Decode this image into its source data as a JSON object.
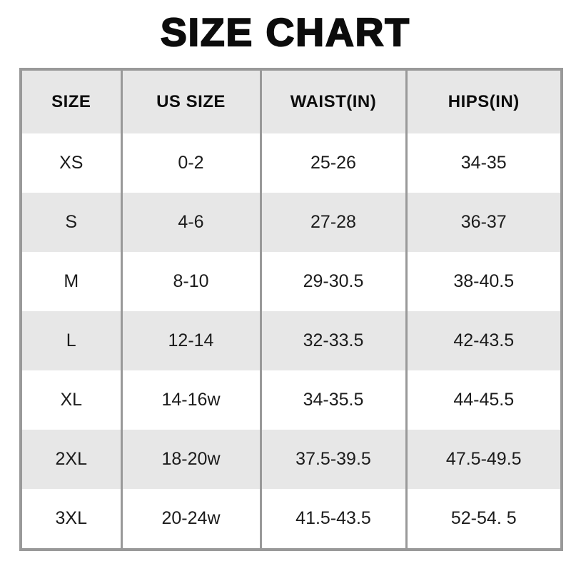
{
  "title": "SIZE CHART",
  "table": {
    "headers": [
      "SIZE",
      "US SIZE",
      "WAIST(IN)",
      "HIPS(IN)"
    ],
    "rows": [
      {
        "size": "XS",
        "us_size": "0-2",
        "waist": "25-26",
        "hips": "34-35"
      },
      {
        "size": "S",
        "us_size": "4-6",
        "waist": "27-28",
        "hips": "36-37"
      },
      {
        "size": "M",
        "us_size": "8-10",
        "waist": "29-30.5",
        "hips": "38-40.5"
      },
      {
        "size": "L",
        "us_size": "12-14",
        "waist": "32-33.5",
        "hips": "42-43.5"
      },
      {
        "size": "XL",
        "us_size": "14-16w",
        "waist": "34-35.5",
        "hips": "44-45.5"
      },
      {
        "size": "2XL",
        "us_size": "18-20w",
        "waist": "37.5-39.5",
        "hips": "47.5-49.5"
      },
      {
        "size": "3XL",
        "us_size": "20-24w",
        "waist": "41.5-43.5",
        "hips": "52-54. 5"
      }
    ]
  },
  "chart_data": {
    "type": "table",
    "title": "SIZE CHART",
    "columns": [
      "SIZE",
      "US SIZE",
      "WAIST(IN)",
      "HIPS(IN)"
    ],
    "rows": [
      [
        "XS",
        "0-2",
        "25-26",
        "34-35"
      ],
      [
        "S",
        "4-6",
        "27-28",
        "36-37"
      ],
      [
        "M",
        "8-10",
        "29-30.5",
        "38-40.5"
      ],
      [
        "L",
        "12-14",
        "32-33.5",
        "42-43.5"
      ],
      [
        "XL",
        "14-16w",
        "34-35.5",
        "44-45.5"
      ],
      [
        "2XL",
        "18-20w",
        "37.5-39.5",
        "47.5-49.5"
      ],
      [
        "3XL",
        "20-24w",
        "41.5-43.5",
        "52-54. 5"
      ]
    ]
  },
  "colors": {
    "border": "#999999",
    "alt_row_bg": "#e7e7e7",
    "header_bg": "#e7e7e7",
    "text": "#1c1c1c",
    "title_text": "#0c0c0c",
    "page_bg": "#ffffff"
  }
}
